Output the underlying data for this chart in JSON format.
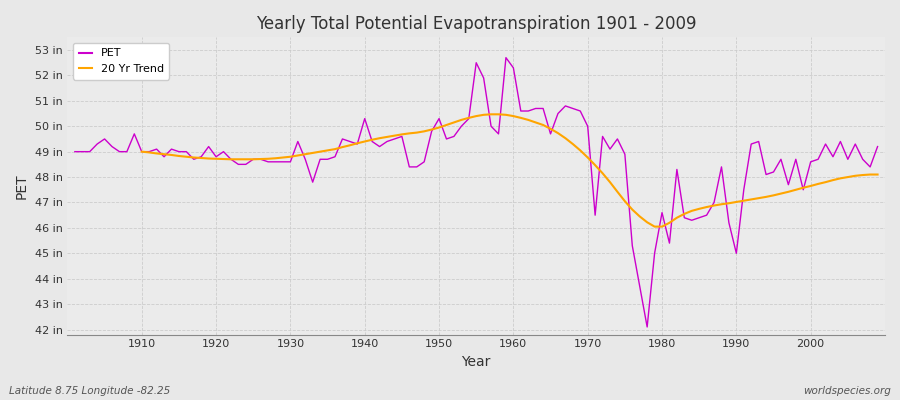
{
  "title": "Yearly Total Potential Evapotranspiration 1901 - 2009",
  "xlabel": "Year",
  "ylabel": "PET",
  "subtitle_left": "Latitude 8.75 Longitude -82.25",
  "subtitle_right": "worldspecies.org",
  "pet_color": "#cc00cc",
  "trend_color": "#ffa500",
  "fig_bg_color": "#e8e8e8",
  "plot_bg_color": "#ebebeb",
  "ylim": [
    41.8,
    53.5
  ],
  "yticks": [
    42,
    43,
    44,
    45,
    46,
    47,
    48,
    49,
    50,
    51,
    52,
    53
  ],
  "xlim": [
    1900,
    2010
  ],
  "xticks": [
    1910,
    1920,
    1930,
    1940,
    1950,
    1960,
    1970,
    1980,
    1990,
    2000
  ],
  "years": [
    1901,
    1902,
    1903,
    1904,
    1905,
    1906,
    1907,
    1908,
    1909,
    1910,
    1911,
    1912,
    1913,
    1914,
    1915,
    1916,
    1917,
    1918,
    1919,
    1920,
    1921,
    1922,
    1923,
    1924,
    1925,
    1926,
    1927,
    1928,
    1929,
    1930,
    1931,
    1932,
    1933,
    1934,
    1935,
    1936,
    1937,
    1938,
    1939,
    1940,
    1941,
    1942,
    1943,
    1944,
    1945,
    1946,
    1947,
    1948,
    1949,
    1950,
    1951,
    1952,
    1953,
    1954,
    1955,
    1956,
    1957,
    1958,
    1959,
    1960,
    1961,
    1962,
    1963,
    1964,
    1965,
    1966,
    1967,
    1968,
    1969,
    1970,
    1971,
    1972,
    1973,
    1974,
    1975,
    1976,
    1977,
    1978,
    1979,
    1980,
    1981,
    1982,
    1983,
    1984,
    1985,
    1986,
    1987,
    1988,
    1989,
    1990,
    1991,
    1992,
    1993,
    1994,
    1995,
    1996,
    1997,
    1998,
    1999,
    2000,
    2001,
    2002,
    2003,
    2004,
    2005,
    2006,
    2007,
    2008,
    2009
  ],
  "pet_values": [
    49.0,
    49.0,
    49.0,
    49.3,
    49.5,
    49.2,
    49.0,
    49.0,
    49.7,
    49.0,
    49.0,
    49.1,
    48.8,
    49.1,
    49.0,
    49.0,
    48.7,
    48.8,
    49.2,
    48.8,
    49.0,
    48.7,
    48.5,
    48.5,
    48.7,
    48.7,
    48.6,
    48.6,
    48.6,
    48.6,
    49.4,
    48.7,
    47.8,
    48.7,
    48.7,
    48.8,
    49.5,
    49.4,
    49.3,
    50.3,
    49.4,
    49.2,
    49.4,
    49.5,
    49.6,
    48.4,
    48.4,
    48.6,
    49.8,
    50.3,
    49.5,
    49.6,
    50.0,
    50.3,
    52.5,
    51.9,
    50.0,
    49.7,
    52.7,
    52.3,
    50.6,
    50.6,
    50.7,
    50.7,
    49.7,
    50.5,
    50.8,
    50.7,
    50.6,
    50.0,
    46.5,
    49.6,
    49.1,
    49.5,
    48.9,
    45.3,
    43.7,
    42.1,
    45.0,
    46.6,
    45.4,
    48.3,
    46.4,
    46.3,
    46.4,
    46.5,
    47.0,
    48.4,
    46.2,
    45.0,
    47.5,
    49.3,
    49.4,
    48.1,
    48.2,
    48.7,
    47.7,
    48.7,
    47.5,
    48.6,
    48.7,
    49.3,
    48.8,
    49.4,
    48.7,
    49.3,
    48.7,
    48.4,
    49.2
  ],
  "trend_years": [
    1910,
    1911,
    1912,
    1913,
    1914,
    1915,
    1916,
    1917,
    1918,
    1919,
    1920,
    1921,
    1922,
    1923,
    1924,
    1925,
    1926,
    1927,
    1928,
    1929,
    1930,
    1931,
    1932,
    1933,
    1934,
    1935,
    1936,
    1937,
    1938,
    1939,
    1940,
    1941,
    1942,
    1943,
    1944,
    1945,
    1946,
    1947,
    1948,
    1949,
    1950,
    1951,
    1952,
    1953,
    1954,
    1955,
    1956,
    1957,
    1958,
    1959,
    1960,
    1961,
    1962,
    1963,
    1964,
    1965,
    1966,
    1967,
    1968,
    1969,
    1970,
    1971,
    1972,
    1973,
    1974,
    1975,
    1976,
    1977,
    1978,
    1979,
    1980,
    1981,
    1982,
    1983,
    1984,
    1985,
    1986,
    1987,
    1988,
    1989,
    1990,
    1991,
    1992,
    1993,
    1994,
    1995,
    1996,
    1997,
    1998,
    1999,
    2000,
    2001,
    2002,
    2003,
    2004,
    2005,
    2006,
    2007,
    2008,
    2009
  ],
  "trend_values": [
    49.0,
    48.97,
    48.93,
    48.9,
    48.87,
    48.83,
    48.8,
    48.77,
    48.75,
    48.73,
    48.72,
    48.71,
    48.7,
    48.7,
    48.7,
    48.7,
    48.71,
    48.72,
    48.74,
    48.77,
    48.8,
    48.85,
    48.9,
    48.95,
    49.0,
    49.05,
    49.1,
    49.18,
    49.25,
    49.33,
    49.4,
    49.47,
    49.53,
    49.58,
    49.63,
    49.68,
    49.72,
    49.75,
    49.8,
    49.87,
    49.95,
    50.05,
    50.15,
    50.25,
    50.33,
    50.4,
    50.45,
    50.47,
    50.47,
    50.45,
    50.4,
    50.33,
    50.25,
    50.15,
    50.05,
    49.9,
    49.73,
    49.53,
    49.3,
    49.05,
    48.77,
    48.47,
    48.15,
    47.8,
    47.42,
    47.05,
    46.72,
    46.45,
    46.22,
    46.05,
    46.05,
    46.2,
    46.4,
    46.55,
    46.67,
    46.75,
    46.82,
    46.88,
    46.93,
    46.97,
    47.02,
    47.07,
    47.12,
    47.17,
    47.22,
    47.28,
    47.35,
    47.42,
    47.5,
    47.58,
    47.65,
    47.73,
    47.8,
    47.88,
    47.95,
    48.0,
    48.05,
    48.08,
    48.1,
    48.1
  ]
}
